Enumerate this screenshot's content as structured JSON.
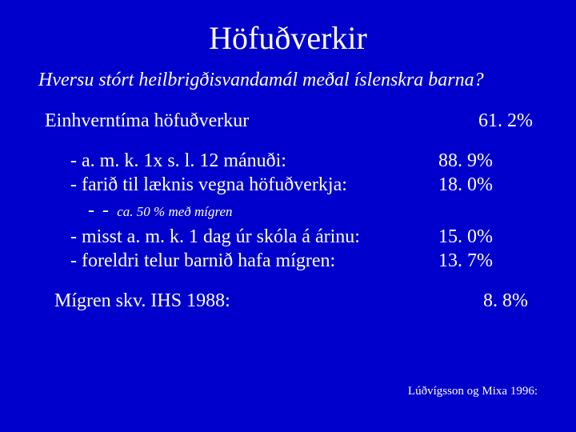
{
  "background_color": "#0000cc",
  "text_color": "#ffffff",
  "font_family": "Times New Roman",
  "title": "Höfuðverkir",
  "subtitle": "Hversu stórt heilbrigðisvandamál meðal íslenskra barna?",
  "main_row": {
    "label": "Einhverntíma höfuðverkur",
    "value": "61. 2%"
  },
  "bullets_group1": [
    {
      "label": "- a. m. k. 1x  s. l. 12 mánuði:",
      "value": "88. 9%"
    },
    {
      "label": "- farið til læknis vegna höfuðverkja:",
      "value": "18. 0%"
    }
  ],
  "note": {
    "dashes": "- -",
    "text": "ca. 50 % með mígren"
  },
  "bullets_group2": [
    {
      "label": "- misst a. m. k. 1 dag úr skóla á árinu:",
      "value": "15. 0%"
    },
    {
      "label": "- foreldri telur barnið hafa mígren:",
      "value": "13. 7%"
    }
  ],
  "bottom_row": {
    "label": "Mígren skv. IHS 1988:",
    "value": "8. 8%"
  },
  "citation": "Lúðvígsson og Mixa 1996:"
}
